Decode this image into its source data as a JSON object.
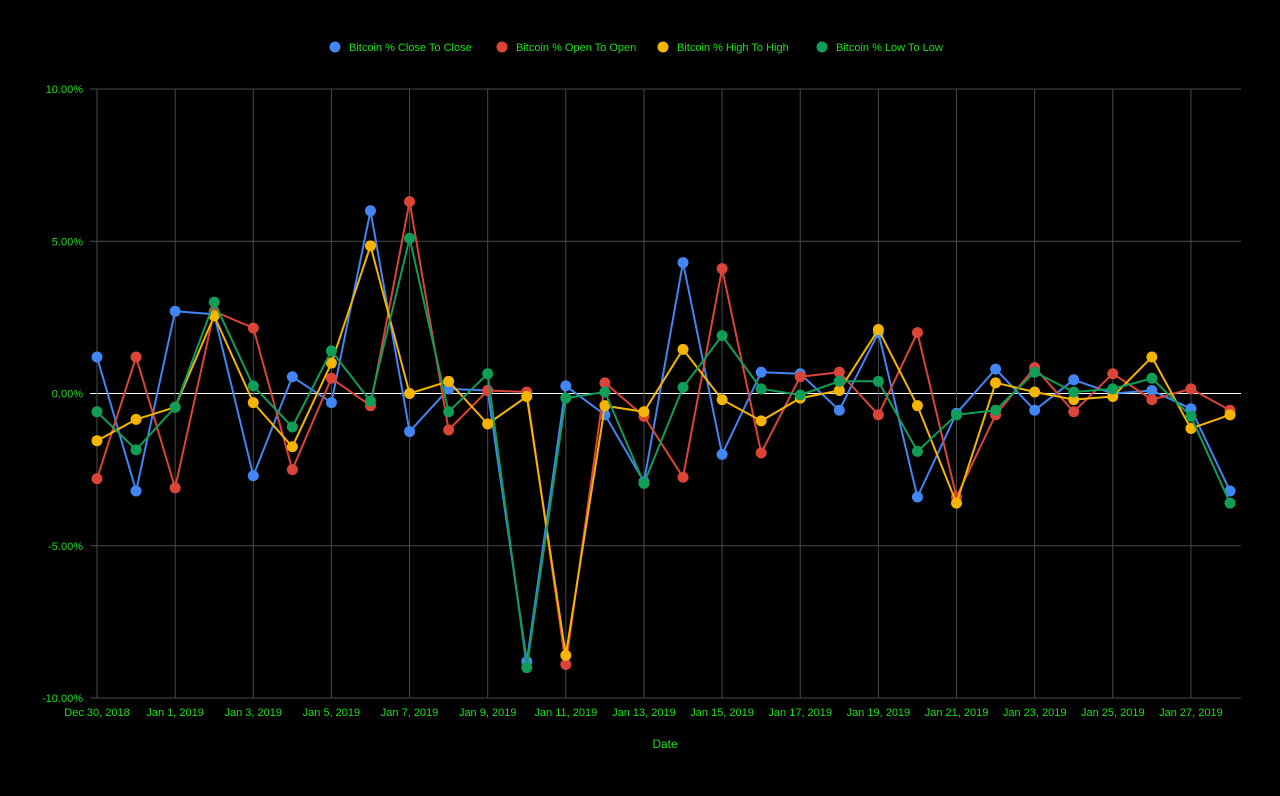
{
  "chart_data": {
    "type": "line",
    "title": "",
    "xlabel": "Date",
    "ylabel": "",
    "ylim": [
      -10,
      10
    ],
    "y_ticks": [
      {
        "value": 10,
        "label": "10.00%"
      },
      {
        "value": 5,
        "label": "5.00%"
      },
      {
        "value": 0,
        "label": "0.00%"
      },
      {
        "value": -5,
        "label": "-5.00%"
      },
      {
        "value": -10,
        "label": "-10.00%"
      }
    ],
    "x": [
      "Dec 30, 2018",
      "Dec 31, 2018",
      "Jan 1, 2019",
      "Jan 2, 2019",
      "Jan 3, 2019",
      "Jan 4, 2019",
      "Jan 5, 2019",
      "Jan 6, 2019",
      "Jan 7, 2019",
      "Jan 8, 2019",
      "Jan 9, 2019",
      "Jan 10, 2019",
      "Jan 11, 2019",
      "Jan 12, 2019",
      "Jan 13, 2019",
      "Jan 14, 2019",
      "Jan 15, 2019",
      "Jan 16, 2019",
      "Jan 17, 2019",
      "Jan 18, 2019",
      "Jan 19, 2019",
      "Jan 20, 2019",
      "Jan 21, 2019",
      "Jan 22, 2019",
      "Jan 23, 2019",
      "Jan 24, 2019",
      "Jan 25, 2019",
      "Jan 26, 2019",
      "Jan 27, 2019",
      "Jan 28, 2019"
    ],
    "x_tick_labels": [
      "Dec 30, 2018",
      "",
      "Jan 1, 2019",
      "",
      "Jan 3, 2019",
      "",
      "Jan 5, 2019",
      "",
      "Jan 7, 2019",
      "",
      "Jan 9, 2019",
      "",
      "Jan 11, 2019",
      "",
      "Jan 13, 2019",
      "",
      "Jan 15, 2019",
      "",
      "Jan 17, 2019",
      "",
      "Jan 19, 2019",
      "",
      "Jan 21, 2019",
      "",
      "Jan 23, 2019",
      "",
      "Jan 25, 2019",
      "",
      "Jan 27, 2019",
      ""
    ],
    "grid": true,
    "legend_position": "top",
    "series": [
      {
        "name": "Bitcoin % Close To Close",
        "color": "#4285F4",
        "values": [
          1.2,
          -3.2,
          2.7,
          2.6,
          -2.7,
          0.55,
          -0.3,
          6.0,
          -1.25,
          0.15,
          0.1,
          -8.8,
          0.25,
          -0.7,
          -2.9,
          4.3,
          -2.0,
          0.7,
          0.65,
          -0.55,
          2.0,
          -3.4,
          -0.65,
          0.8,
          -0.55,
          0.45,
          0.0,
          0.1,
          -0.5,
          -3.2
        ]
      },
      {
        "name": "Bitcoin % Open To Open",
        "color": "#DB4437",
        "values": [
          -2.8,
          1.2,
          -3.1,
          2.7,
          2.15,
          -2.5,
          0.5,
          -0.4,
          6.3,
          -1.2,
          0.1,
          0.05,
          -8.9,
          0.35,
          -0.75,
          -2.75,
          4.1,
          -1.95,
          0.55,
          0.7,
          -0.7,
          2.0,
          -3.4,
          -0.7,
          0.85,
          -0.6,
          0.65,
          -0.2,
          0.15,
          -0.55
        ]
      },
      {
        "name": "Bitcoin % High To High",
        "color": "#F4B400",
        "values": [
          -1.55,
          -0.85,
          -0.45,
          2.55,
          -0.3,
          -1.75,
          1.0,
          4.85,
          0.0,
          0.4,
          -1.0,
          -0.1,
          -8.6,
          -0.4,
          -0.6,
          1.45,
          -0.2,
          -0.9,
          -0.15,
          0.1,
          2.1,
          -0.4,
          -3.6,
          0.35,
          0.05,
          -0.2,
          -0.1,
          1.2,
          -1.15,
          -0.7
        ]
      },
      {
        "name": "Bitcoin % Low To Low",
        "color": "#0F9D58",
        "values": [
          -0.6,
          -1.85,
          -0.45,
          3.0,
          0.25,
          -1.1,
          1.4,
          -0.25,
          5.1,
          -0.6,
          0.65,
          -9.0,
          -0.15,
          0.05,
          -2.95,
          0.2,
          1.9,
          0.15,
          -0.05,
          0.4,
          0.4,
          -1.9,
          -0.7,
          -0.55,
          0.7,
          0.05,
          0.15,
          0.5,
          -0.75,
          -3.6
        ]
      }
    ]
  }
}
